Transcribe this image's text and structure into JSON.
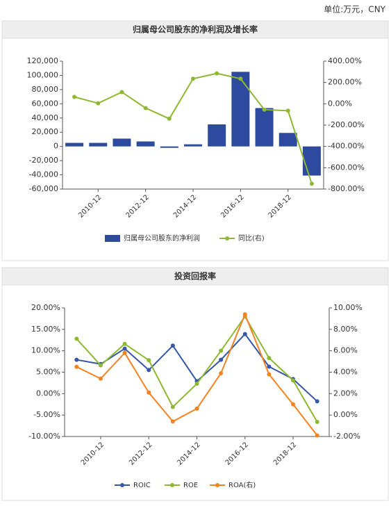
{
  "unit": "单位:万元，CNY",
  "chart_data": [
    {
      "type": "bar",
      "title": "归属母公司股东的净利润及增长率",
      "categories": [
        null,
        "2010-12",
        null,
        "2012-12",
        null,
        "2014-12",
        null,
        "2016-12",
        null,
        "2018-12",
        null
      ],
      "series": [
        {
          "name": "归属母公司股东的净利润",
          "type": "bar",
          "color": "#2e4a9e",
          "values": [
            5000,
            5000,
            11000,
            7000,
            -2000,
            3000,
            31000,
            105000,
            54000,
            19000,
            -41000
          ]
        },
        {
          "name": "同比(右)",
          "type": "line",
          "axis": "y2",
          "color": "#8db832",
          "values": [
            65,
            5,
            110,
            -40,
            -140,
            235,
            285,
            235,
            -55,
            -65,
            -750
          ]
        }
      ],
      "ylim": [
        -60000,
        120000
      ],
      "yticks": [
        {
          "value": -60000,
          "label": "-60,000"
        },
        {
          "value": -40000,
          "label": "-40,000"
        },
        {
          "value": -20000,
          "label": "-20,000"
        },
        0,
        {
          "value": 20000,
          "label": "20,000"
        },
        {
          "value": 40000,
          "label": "40,000"
        },
        {
          "value": 60000,
          "label": "60,000"
        },
        {
          "value": 80000,
          "label": "80,000"
        },
        {
          "value": 100000,
          "label": "100,000"
        },
        {
          "value": 120000,
          "label": "120,000"
        }
      ],
      "y2lim": [
        -800,
        400
      ],
      "y2ticks": [
        {
          "value": -800,
          "label": "-800.00%"
        },
        {
          "value": -600,
          "label": "-600.00%"
        },
        {
          "value": -400,
          "label": "-400.00%"
        },
        {
          "value": -200,
          "label": "-200.00%"
        },
        {
          "value": 0,
          "label": "0.00%"
        },
        {
          "value": 200,
          "label": "200.00%"
        },
        {
          "value": 400,
          "label": "400.00%"
        }
      ],
      "grid": false
    },
    {
      "type": "line",
      "title": "投资回报率",
      "categories": [
        null,
        "2010-12",
        null,
        "2012-12",
        null,
        "2014-12",
        null,
        "2016-12",
        null,
        "2018-12",
        null
      ],
      "series": [
        {
          "name": "ROIC",
          "color": "#3656a8",
          "values": [
            7.9,
            6.9,
            10.5,
            5.5,
            11.2,
            2.9,
            7.9,
            13.9,
            6.3,
            3.4,
            -1.8
          ]
        },
        {
          "name": "ROE",
          "color": "#8db832",
          "values": [
            12.8,
            6.6,
            11.6,
            7.8,
            -3.1,
            2.3,
            10,
            18,
            8.3,
            3.1,
            -6.6
          ]
        },
        {
          "name": "ROA(右)",
          "axis": "y2",
          "color": "#f58220",
          "values": [
            4.5,
            3.4,
            5.8,
            2.1,
            -0.6,
            0.6,
            3.9,
            9.4,
            3.8,
            1.0,
            -1.9
          ]
        }
      ],
      "ylim": [
        -10,
        20
      ],
      "yticks": [
        {
          "value": -10,
          "label": "-10.00%"
        },
        {
          "value": -5,
          "label": "-5.00%"
        },
        {
          "value": 0,
          "label": "0.00%"
        },
        {
          "value": 5,
          "label": "5.00%"
        },
        {
          "value": 10,
          "label": "10.00%"
        },
        {
          "value": 15,
          "label": "15.00%"
        },
        {
          "value": 20,
          "label": "20.00%"
        }
      ],
      "y2lim": [
        -2,
        10
      ],
      "y2ticks": [
        {
          "value": -2,
          "label": "-2.00%"
        },
        {
          "value": 0,
          "label": "0.00%"
        },
        {
          "value": 2,
          "label": "2.00%"
        },
        {
          "value": 4,
          "label": "4.00%"
        },
        {
          "value": 6,
          "label": "6.00%"
        },
        {
          "value": 8,
          "label": "8.00%"
        },
        {
          "value": 10,
          "label": "10.00%"
        }
      ],
      "grid": false
    }
  ]
}
